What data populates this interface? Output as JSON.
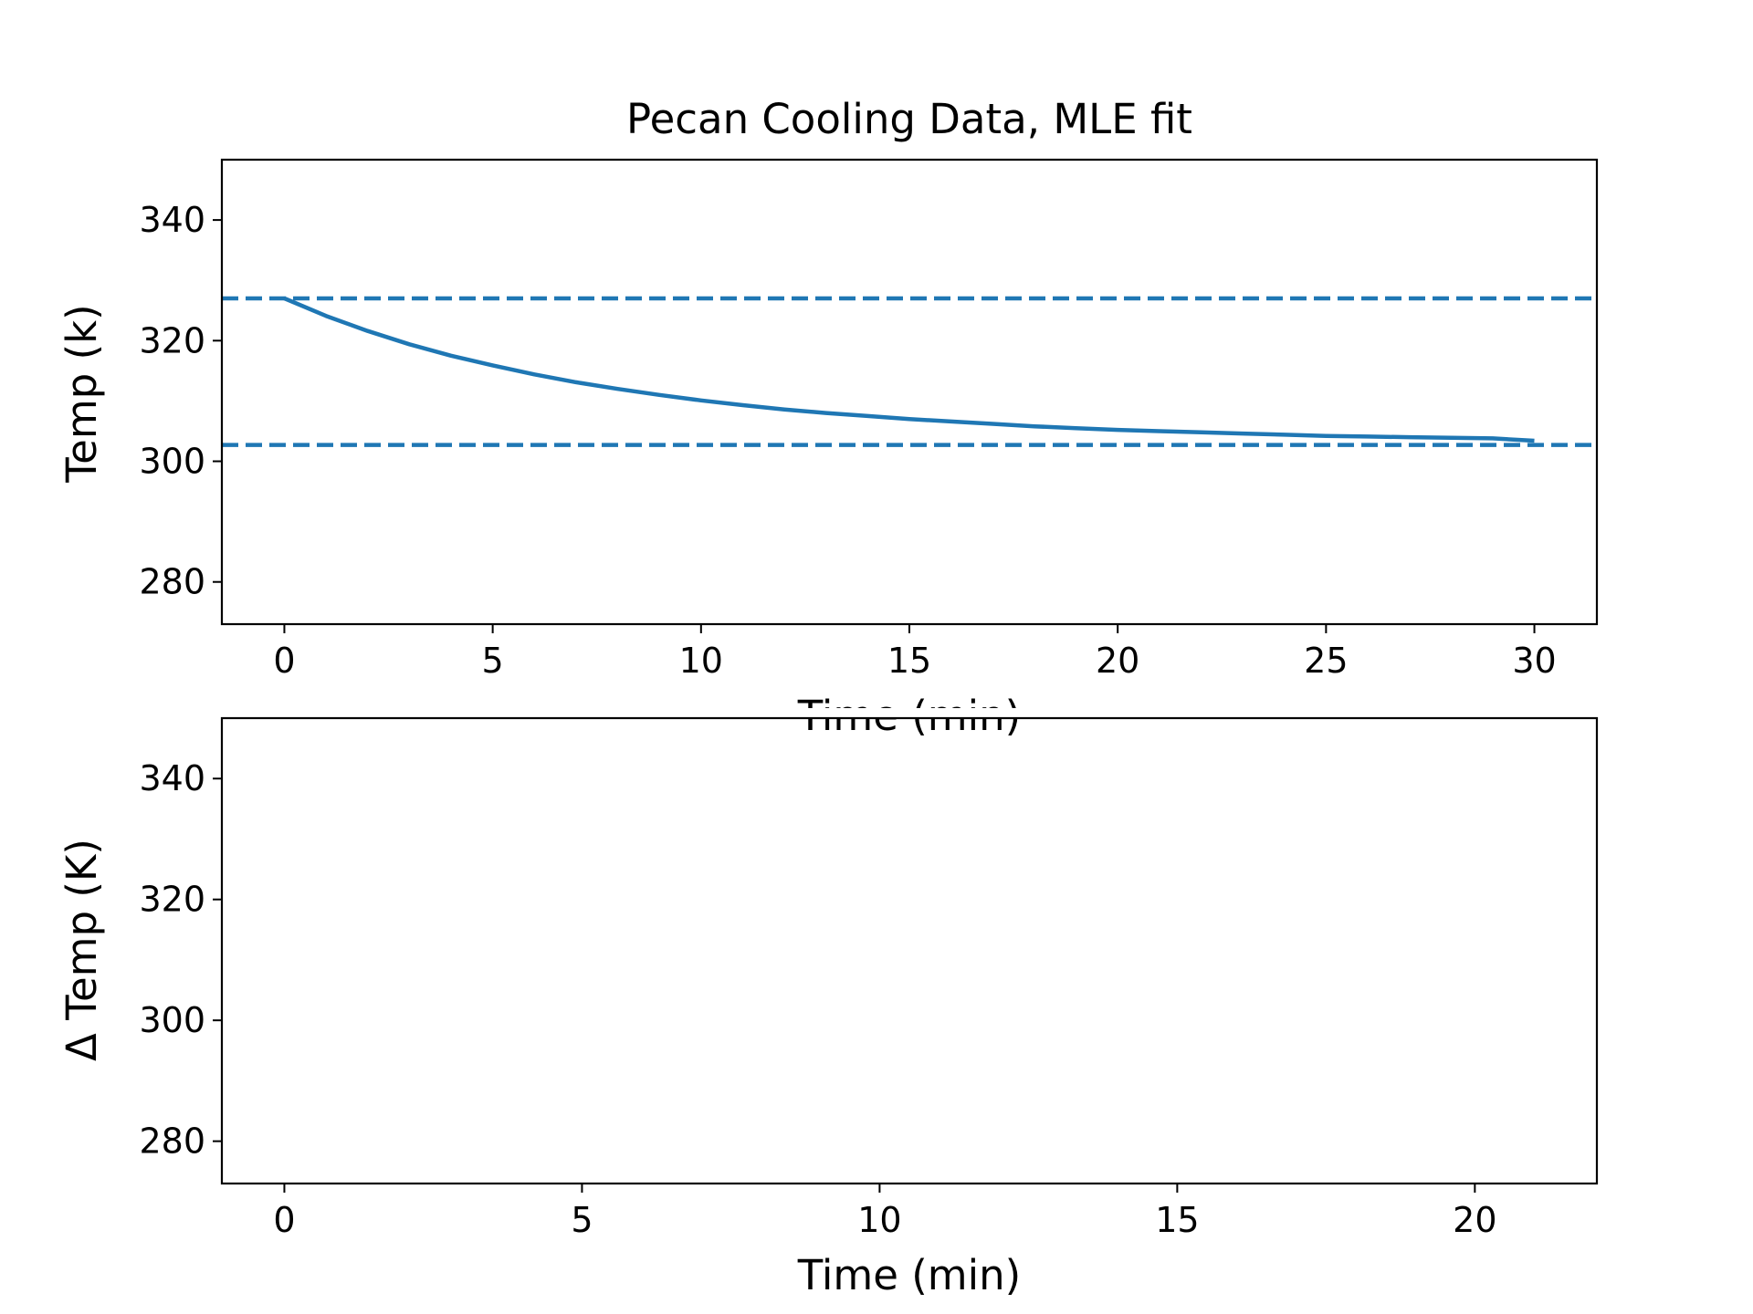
{
  "chart_data": [
    {
      "type": "line",
      "title": "Pecan Cooling Data, MLE fit",
      "xlabel": "Time (min)",
      "ylabel": "Temp (k)",
      "xlim": [
        -1.5,
        31.5
      ],
      "ylim": [
        273,
        350
      ],
      "xticks": [
        0,
        5,
        10,
        15,
        20,
        25,
        30
      ],
      "yticks": [
        280,
        300,
        320,
        340
      ],
      "grid": false,
      "color": "#1f77b4",
      "series": [
        {
          "style": "solid",
          "x": [
            0,
            1,
            2,
            3,
            4,
            5,
            6,
            7,
            8,
            9,
            10,
            11,
            12,
            13,
            14,
            15,
            16,
            17,
            18,
            19,
            20,
            21,
            22,
            23,
            24,
            25,
            26,
            27,
            28,
            29,
            30
          ],
          "y": [
            327.0,
            324.1,
            321.6,
            319.4,
            317.5,
            315.9,
            314.4,
            313.1,
            312.0,
            311.0,
            310.1,
            309.3,
            308.6,
            308.0,
            307.5,
            307.0,
            306.6,
            306.2,
            305.8,
            305.5,
            305.2,
            305.0,
            304.8,
            304.6,
            304.4,
            304.2,
            304.1,
            304.0,
            303.9,
            303.8,
            303.4
          ]
        }
      ],
      "hlines": [
        {
          "y": 327.0,
          "style": "dashed"
        },
        {
          "y": 302.7,
          "style": "dashed"
        }
      ]
    },
    {
      "type": "line",
      "title": "",
      "xlabel": "Time (min)",
      "ylabel": "Δ Temp (K)",
      "xlim": [
        -1.05,
        22.05
      ],
      "ylim": [
        273,
        350
      ],
      "xticks": [
        0,
        5,
        10,
        15,
        20
      ],
      "yticks": [
        280,
        300,
        320,
        340
      ],
      "grid": false,
      "series": []
    }
  ]
}
